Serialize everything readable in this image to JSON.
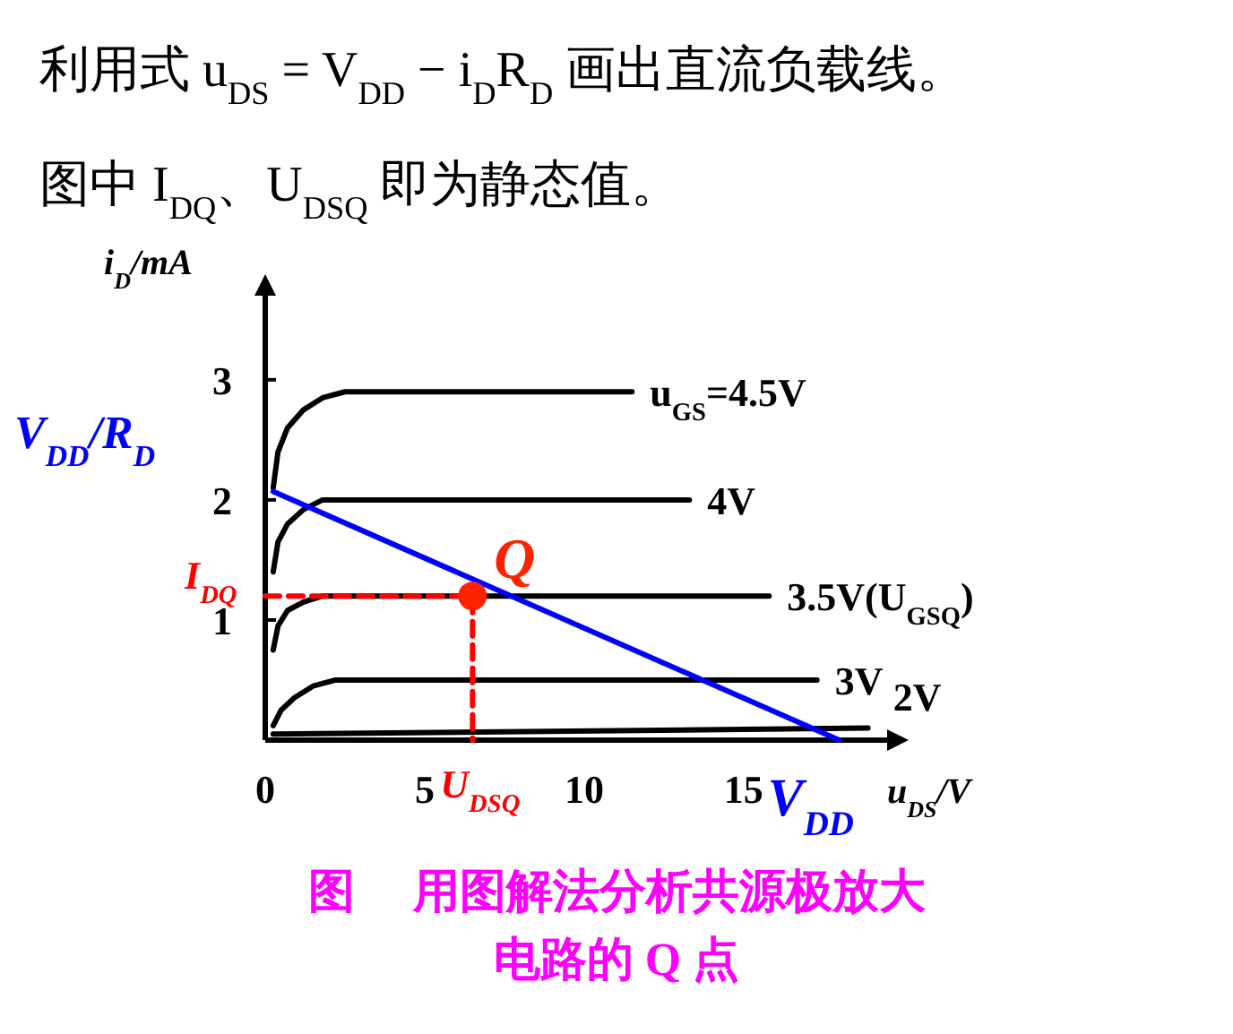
{
  "chart_data": {
    "type": "line",
    "title": "利用式 u$_{DS}$ = V$_{DD}$ − i$_{D}$R$_{D}$ 画出直流负载线。",
    "subtitle": "图中 I$_{DQ}$、U$_{DSQ}$ 即为静态值。",
    "xlabel": "u$_{DS}$/V",
    "ylabel": "i$_{D}$/mA",
    "xlim": [
      0,
      19.5
    ],
    "ylim": [
      0,
      3.7
    ],
    "xticks": [
      0,
      5,
      10,
      15
    ],
    "yticks": [
      1,
      2,
      3
    ],
    "series": [
      {
        "name": "u$_{GS}$=4.5V",
        "color": "#000000",
        "x": [
          0.25,
          0.4,
          0.7,
          1.2,
          1.8,
          2.5,
          11.5
        ],
        "values": [
          2.1,
          2.4,
          2.6,
          2.75,
          2.85,
          2.9,
          2.9
        ]
      },
      {
        "name": "4V",
        "color": "#000000",
        "x": [
          0.25,
          0.4,
          0.7,
          1.2,
          1.8,
          2.5,
          13.3
        ],
        "values": [
          1.4,
          1.65,
          1.8,
          1.92,
          2.0,
          2.0,
          2.0
        ]
      },
      {
        "name": "3.5V(U$_{GSQ}$)",
        "color": "#000000",
        "x": [
          0.25,
          0.4,
          0.7,
          1.2,
          1.8,
          2.5,
          15.8
        ],
        "values": [
          0.75,
          0.95,
          1.08,
          1.15,
          1.2,
          1.2,
          1.2
        ]
      },
      {
        "name": "3V",
        "color": "#000000",
        "x": [
          0.25,
          0.5,
          0.9,
          1.5,
          2.2,
          3.0,
          17.3
        ],
        "values": [
          0.12,
          0.25,
          0.35,
          0.45,
          0.5,
          0.5,
          0.5
        ]
      },
      {
        "name": "2V",
        "color": "#000000",
        "x": [
          0.25,
          18.9
        ],
        "values": [
          0.05,
          0.1
        ]
      },
      {
        "color": "#0000ff",
        "x": [
          0.25,
          18
        ],
        "values": [
          2.07,
          0
        ]
      },
      {
        "color": "#ff0000",
        "line_style": "dashed",
        "x": [
          0,
          6.5,
          6.5
        ],
        "values": [
          1.2,
          1.2,
          0
        ]
      },
      {
        "name": "Q",
        "type": "scatter",
        "marker": "circle",
        "color": "#ff2200",
        "x": [
          6.5
        ],
        "values": [
          1.2
        ]
      }
    ],
    "annotations": [
      {
        "text": "V$_{DD}$/R$_{D}$",
        "x": 0,
        "y": 2.1
      },
      {
        "text": "I$_{DQ}$",
        "x": 0,
        "y": 1.2
      },
      {
        "text": "U$_{DSQ}$",
        "x": 6.5,
        "y": 0
      },
      {
        "text": "V$_{DD}$",
        "x": 18,
        "y": 0
      },
      "图　 用图解法分析共源极放大",
      "电路的 Q 点"
    ]
  }
}
